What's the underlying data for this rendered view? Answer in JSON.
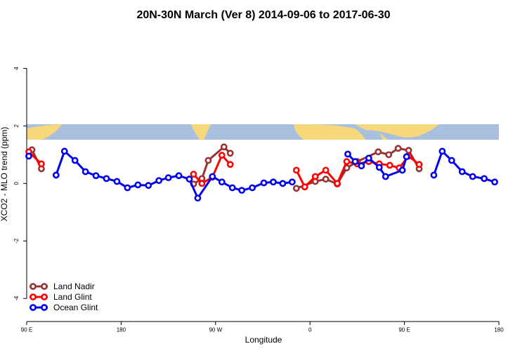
{
  "chart_data": {
    "type": "line",
    "title": "20N-30N March (Ver 8)   2014-09-06 to 2017-06-30",
    "x_label": "Longitude",
    "y_label": "XCO2 - MLO trend (ppm)",
    "xlim": [
      90,
      540
    ],
    "xticks": [
      {
        "value": 90,
        "label": "90 E"
      },
      180,
      {
        "value": 270,
        "label": "90 W"
      },
      {
        "value": 360,
        "label": "0"
      },
      {
        "value": 450,
        "label": "90 E"
      },
      {
        "value": 540,
        "label": "180"
      }
    ],
    "ylim": [
      -4.8,
      5.45
    ],
    "yticks": [
      -4,
      -2,
      0,
      2,
      4
    ],
    "legend": "bottom-left",
    "series": [
      {
        "name": "Land Nadir",
        "color": "#993333",
        "x": [
          95,
          104,
          175,
          249,
          257,
          263,
          278,
          284,
          315,
          347,
          365,
          375,
          386,
          395,
          405,
          425,
          435,
          444,
          454,
          464
        ],
        "values": [
          1.17,
          0.51,
          null,
          -0.02,
          0.17,
          0.8,
          1.27,
          1.05,
          null,
          -0.17,
          0.07,
          0.15,
          -0.02,
          0.54,
          0.76,
          1.1,
          1.0,
          1.22,
          1.15,
          0.51
        ]
      },
      {
        "name": "Land Glint",
        "color": "#ff0000",
        "x": [
          92,
          104,
          175,
          249,
          257,
          267,
          276,
          284,
          315,
          347,
          355,
          365,
          375,
          386,
          395,
          405,
          416,
          426,
          436,
          445,
          454,
          464
        ],
        "values": [
          1.1,
          0.68,
          null,
          0.32,
          0.0,
          0.22,
          0.98,
          0.66,
          null,
          0.46,
          -0.12,
          0.24,
          0.46,
          0.0,
          0.76,
          0.68,
          0.76,
          0.68,
          0.63,
          0.54,
          0.95,
          0.66
        ]
      },
      {
        "name": "Ocean Glint",
        "color": "#0000ee",
        "x": [
          92,
          105,
          118,
          126,
          136,
          146,
          156,
          166,
          176,
          186,
          196,
          206,
          216,
          225,
          235,
          245,
          253,
          267,
          276,
          286,
          295,
          305,
          316,
          325,
          334,
          343,
          370,
          396,
          403,
          409,
          416,
          426,
          432,
          448,
          452,
          465,
          478,
          486,
          495,
          505,
          515,
          526,
          536
        ],
        "values": [
          0.95,
          null,
          0.29,
          1.12,
          0.8,
          0.41,
          0.27,
          0.17,
          0.07,
          -0.15,
          -0.05,
          -0.07,
          0.1,
          0.2,
          0.27,
          0.15,
          -0.51,
          0.24,
          0.05,
          -0.15,
          -0.24,
          -0.15,
          0.02,
          0.05,
          0.0,
          0.05,
          null,
          1.02,
          0.76,
          0.61,
          0.88,
          0.56,
          0.24,
          0.46,
          0.93,
          null,
          0.29,
          1.12,
          0.8,
          0.41,
          0.24,
          0.17,
          0.05
        ]
      }
    ]
  }
}
